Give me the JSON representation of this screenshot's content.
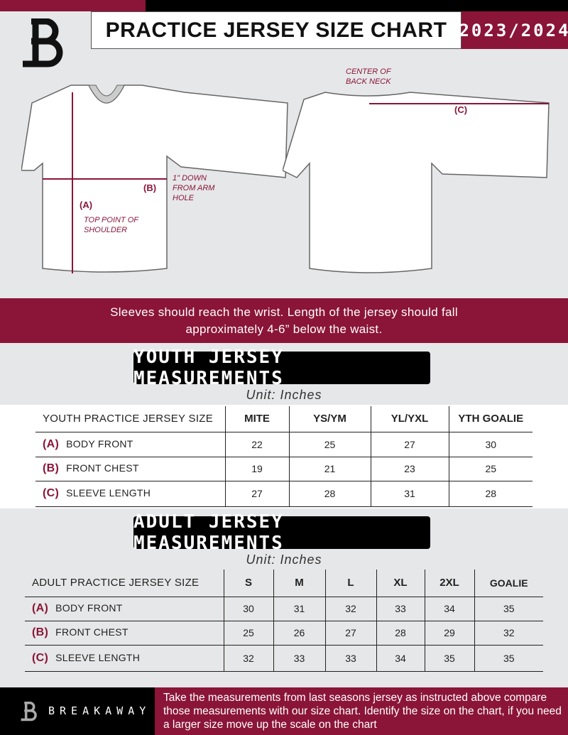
{
  "header": {
    "title": "PRACTICE JERSEY SIZE CHART",
    "season": "2023/2024",
    "logo_letter": "B"
  },
  "diagram": {
    "front_labels": {
      "a": "(A)",
      "b": "(B)",
      "a_note": "TOP POINT OF SHOULDER",
      "b_note": "1\" DOWN FROM ARM HOLE"
    },
    "back_labels": {
      "c": "(C)",
      "c_note": "CENTER OF BACK NECK"
    }
  },
  "note": "Sleeves should reach the wrist. Length of the jersey should fall approximately 4-6” below the waist.",
  "youth": {
    "title": "YOUTH JERSEY MEASUREMENTS",
    "unit": "Unit: Inches",
    "header": [
      "YOUTH PRACTICE JERSEY SIZE",
      "MITE",
      "YS/YM",
      "YL/YXL",
      "YTH GOALIE"
    ],
    "rows": [
      {
        "code": "(A)",
        "label": "BODY FRONT",
        "values": [
          "22",
          "25",
          "27",
          "30"
        ]
      },
      {
        "code": "(B)",
        "label": "FRONT CHEST",
        "values": [
          "19",
          "21",
          "23",
          "25"
        ]
      },
      {
        "code": "(C)",
        "label": "SLEEVE LENGTH",
        "values": [
          "27",
          "28",
          "31",
          "28"
        ]
      }
    ]
  },
  "adult": {
    "title": "ADULT JERSEY MEASUREMENTS",
    "unit": "Unit: Inches",
    "header": [
      "ADULT PRACTICE JERSEY SIZE",
      "S",
      "M",
      "L",
      "XL",
      "2XL",
      "GOALIE"
    ],
    "rows": [
      {
        "code": "(A)",
        "label": "BODY FRONT",
        "values": [
          "30",
          "31",
          "32",
          "33",
          "34",
          "35"
        ]
      },
      {
        "code": "(B)",
        "label": "FRONT CHEST",
        "values": [
          "25",
          "26",
          "27",
          "28",
          "29",
          "32"
        ]
      },
      {
        "code": "(C)",
        "label": "SLEEVE LENGTH",
        "values": [
          "32",
          "33",
          "33",
          "34",
          "35",
          "35"
        ]
      }
    ]
  },
  "footer": {
    "brand": "BREAKAWAY",
    "text": "Take the measurements from last seasons jersey as instructed above compare those measurements  with our size chart. Identify the size on the chart, if you need a larger size move up the scale on the chart"
  },
  "colors": {
    "accent": "#8a1538",
    "background": "#e6e7e8"
  }
}
